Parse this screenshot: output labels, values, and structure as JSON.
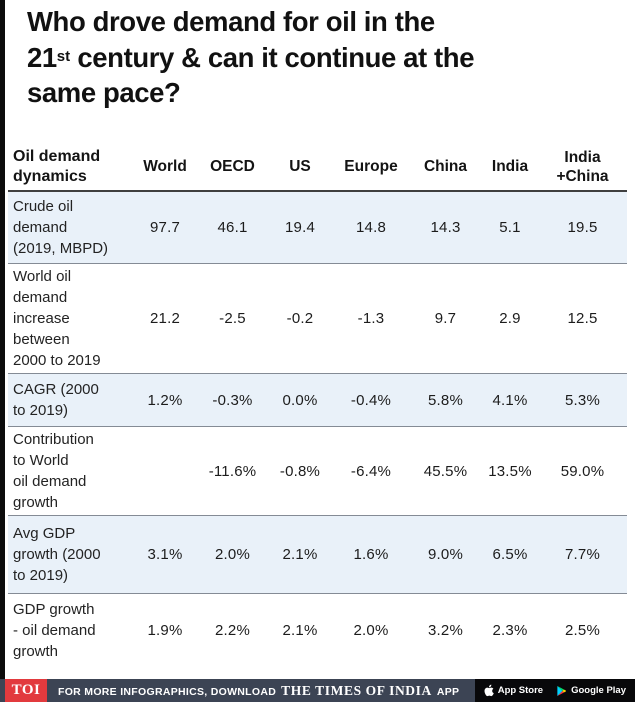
{
  "title": {
    "line1": "Who drove demand for oil in the",
    "line2_num": "21",
    "line2_sup": "st",
    "line2_rest": " century & can it continue at the",
    "line3": "same pace?"
  },
  "table": {
    "header": {
      "label": "Oil demand\ndynamics",
      "columns": [
        "World",
        "OECD",
        "US",
        "Europe",
        "China",
        "India",
        "India\n+China"
      ]
    },
    "rows": [
      {
        "label": "Crude oil\ndemand\n(2019, MBPD)",
        "values": [
          "97.7",
          "46.1",
          "19.4",
          "14.8",
          "14.3",
          "5.1",
          "19.5"
        ],
        "shaded": true
      },
      {
        "label": "World oil\ndemand\nincrease\nbetween\n2000 to 2019",
        "values": [
          "21.2",
          "-2.5",
          "-0.2",
          "-1.3",
          "9.7",
          "2.9",
          "12.5"
        ],
        "shaded": false
      },
      {
        "label": "CAGR (2000\nto 2019)",
        "values": [
          "1.2%",
          "-0.3%",
          "0.0%",
          "-0.4%",
          "5.8%",
          "4.1%",
          "5.3%"
        ],
        "shaded": true
      },
      {
        "label": "Contribution\nto World\noil demand\ngrowth",
        "values": [
          "",
          "-11.6%",
          "-0.8%",
          "-6.4%",
          "45.5%",
          "13.5%",
          "59.0%"
        ],
        "shaded": false
      },
      {
        "label": "Avg GDP\ngrowth (2000\nto 2019)",
        "values": [
          "3.1%",
          "2.0%",
          "2.1%",
          "1.6%",
          "9.0%",
          "6.5%",
          "7.7%"
        ],
        "shaded": true
      },
      {
        "label": "GDP growth\n- oil demand\ngrowth",
        "values": [
          "1.9%",
          "2.2%",
          "2.1%",
          "2.0%",
          "3.2%",
          "2.3%",
          "2.5%"
        ],
        "shaded": false
      }
    ]
  },
  "chart_data": {
    "type": "table",
    "title": "Who drove demand for oil in the 21st century & can it continue at the same pace?",
    "columns": [
      "World",
      "OECD",
      "US",
      "Europe",
      "China",
      "India",
      "India +China"
    ],
    "rows": [
      {
        "label": "Crude oil demand (2019, MBPD)",
        "values": [
          97.7,
          46.1,
          19.4,
          14.8,
          14.3,
          5.1,
          19.5
        ]
      },
      {
        "label": "World oil demand increase between 2000 to 2019",
        "values": [
          21.2,
          -2.5,
          -0.2,
          -1.3,
          9.7,
          2.9,
          12.5
        ]
      },
      {
        "label": "CAGR (2000 to 2019)",
        "values": [
          "1.2%",
          "-0.3%",
          "0.0%",
          "-0.4%",
          "5.8%",
          "4.1%",
          "5.3%"
        ]
      },
      {
        "label": "Contribution to World oil demand growth",
        "values": [
          null,
          "-11.6%",
          "-0.8%",
          "-6.4%",
          "45.5%",
          "13.5%",
          "59.0%"
        ]
      },
      {
        "label": "Avg GDP growth (2000 to 2019)",
        "values": [
          "3.1%",
          "2.0%",
          "2.1%",
          "1.6%",
          "9.0%",
          "6.5%",
          "7.7%"
        ]
      },
      {
        "label": "GDP growth - oil demand growth",
        "values": [
          "1.9%",
          "2.2%",
          "2.1%",
          "2.0%",
          "3.2%",
          "2.3%",
          "2.5%"
        ]
      }
    ]
  },
  "footer": {
    "logo": "TOI",
    "text_before": "FOR MORE INFOGRAPHICS, DOWNLOAD",
    "brand": "THE TIMES OF INDIA",
    "text_after": "APP",
    "appstore_label": "App Store",
    "googleplay_label": "Google Play"
  },
  "colors": {
    "row_shade": "#e9f1f9",
    "footer_bar": "#3c4454",
    "logo_red": "#e23a3e",
    "title_text": "#111111"
  }
}
